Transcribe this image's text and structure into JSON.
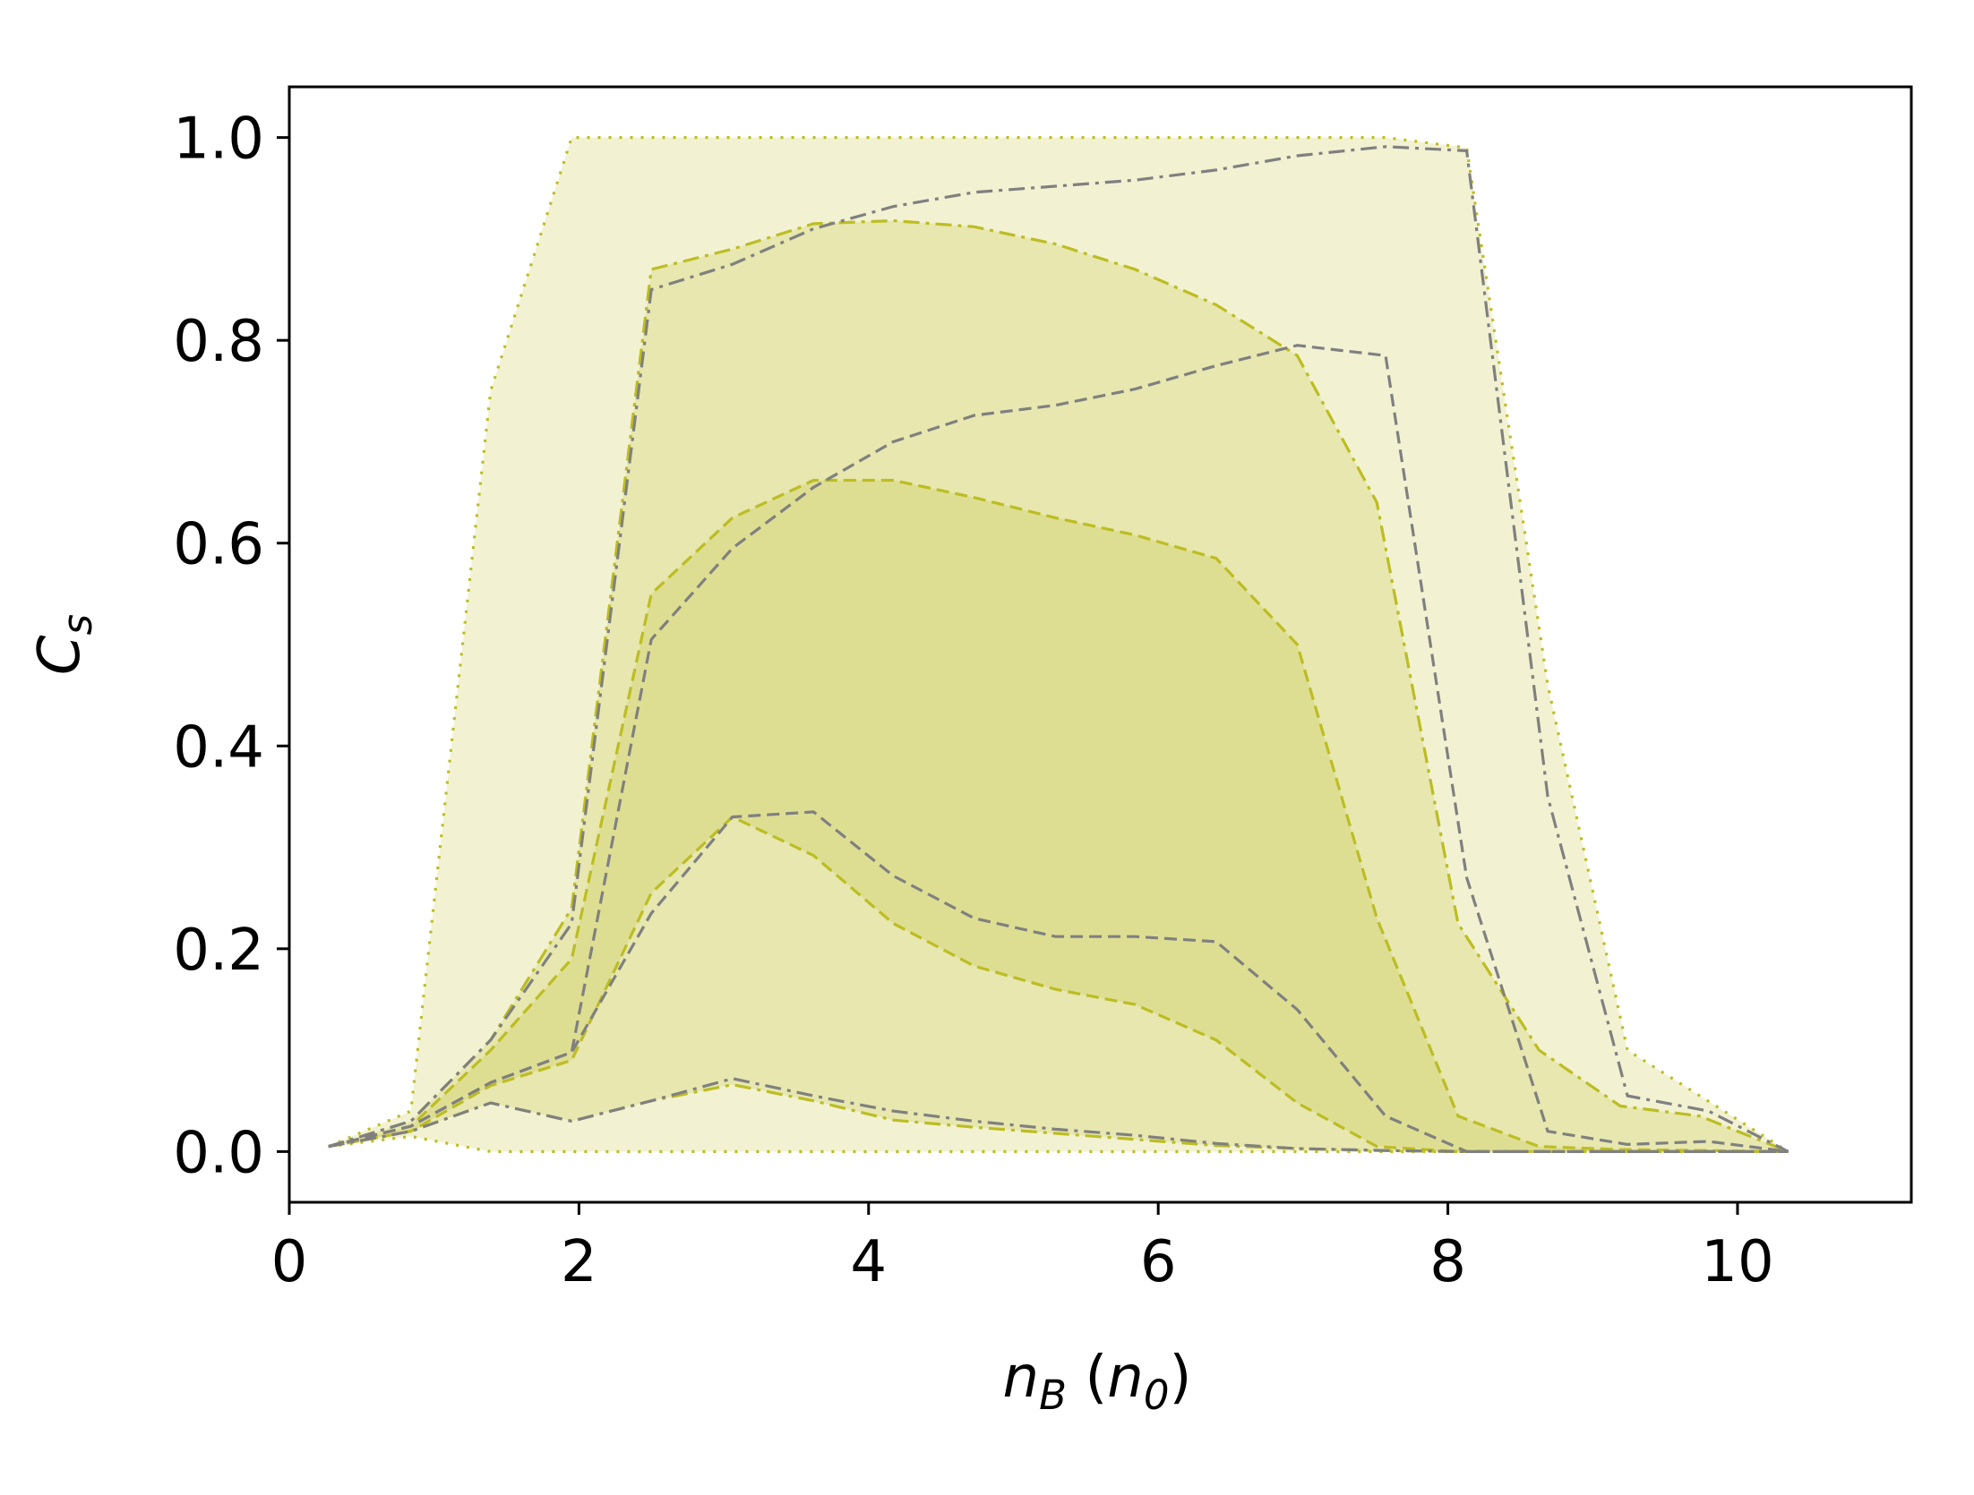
{
  "chart_data": {
    "type": "area",
    "xlabel": {
      "var": "n",
      "sub": "B",
      "unit_var": "n",
      "unit_sub": "0"
    },
    "ylabel": {
      "var": "C",
      "sub": "s"
    },
    "xlim": [
      0,
      11.2
    ],
    "ylim": [
      -0.05,
      1.05
    ],
    "xticks": [
      0,
      2,
      4,
      6,
      8,
      10
    ],
    "yticks": [
      0.0,
      0.2,
      0.4,
      0.6,
      0.8,
      1.0
    ],
    "xtick_labels": [
      "0",
      "2",
      "4",
      "6",
      "8",
      "10"
    ],
    "ytick_labels": [
      "0.0",
      "0.2",
      "0.4",
      "0.6",
      "0.8",
      "1.0"
    ],
    "grid": false,
    "colors": {
      "band_fill": "#bcbd22",
      "band_line": "#bcbd22",
      "median_line": "#808080"
    },
    "bands": [
      {
        "band": "outer",
        "fill_opacity": 0.2,
        "line_style": "dotted",
        "upper": {
          "x": [
            0.27,
            0.84,
            1.39,
            1.95,
            7.57,
            8.13,
            8.69,
            9.24,
            10.35
          ],
          "y": [
            0.005,
            0.04,
            0.75,
            1.0,
            1.0,
            0.99,
            0.46,
            0.1,
            0.0
          ]
        },
        "lower": {
          "x": [
            0.27,
            0.84,
            1.39,
            10.35
          ],
          "y": [
            0.005,
            0.015,
            0.0,
            0.0
          ]
        }
      },
      {
        "band": "middle",
        "fill_opacity": 0.2,
        "line_style": "dashdot",
        "upper": {
          "x": [
            0.27,
            0.84,
            1.39,
            1.95,
            2.5,
            3.06,
            3.62,
            4.17,
            4.73,
            5.29,
            5.84,
            6.4,
            6.96,
            7.51,
            8.07,
            8.63,
            9.19,
            9.74,
            10.35
          ],
          "y": [
            0.005,
            0.03,
            0.11,
            0.24,
            0.87,
            0.89,
            0.915,
            0.918,
            0.912,
            0.895,
            0.87,
            0.835,
            0.785,
            0.64,
            0.225,
            0.1,
            0.045,
            0.035,
            0.0
          ]
        },
        "lower": {
          "x": [
            0.27,
            0.84,
            1.39,
            1.95,
            2.5,
            3.06,
            3.62,
            4.17,
            4.73,
            5.29,
            5.84,
            6.4,
            6.96,
            7.51,
            8.07,
            8.63,
            9.19,
            10.35
          ],
          "y": [
            0.005,
            0.02,
            0.048,
            0.03,
            0.05,
            0.066,
            0.05,
            0.031,
            0.024,
            0.018,
            0.012,
            0.006,
            0.003,
            0.001,
            0.0,
            0.0,
            0.0,
            0.0
          ]
        }
      },
      {
        "band": "inner",
        "fill_opacity": 0.2,
        "line_style": "dashed",
        "upper": {
          "x": [
            0.27,
            0.84,
            1.39,
            1.95,
            2.5,
            3.06,
            3.62,
            4.17,
            4.73,
            5.29,
            5.84,
            6.4,
            6.96,
            7.51,
            8.07,
            8.63,
            9.19,
            10.35
          ],
          "y": [
            0.005,
            0.025,
            0.1,
            0.19,
            0.55,
            0.625,
            0.662,
            0.662,
            0.645,
            0.625,
            0.608,
            0.585,
            0.5,
            0.23,
            0.035,
            0.005,
            0.002,
            0.0
          ]
        },
        "lower": {
          "x": [
            0.27,
            0.84,
            1.39,
            1.95,
            2.5,
            3.06,
            3.62,
            4.17,
            4.73,
            5.29,
            5.84,
            6.4,
            6.96,
            7.51,
            8.07,
            10.35
          ],
          "y": [
            0.005,
            0.02,
            0.065,
            0.09,
            0.255,
            0.33,
            0.292,
            0.225,
            0.183,
            0.16,
            0.145,
            0.11,
            0.048,
            0.005,
            0.0,
            0.0
          ]
        }
      }
    ],
    "medians": [
      {
        "line_style": "dashdot",
        "x": [
          0.27,
          0.84,
          1.39,
          1.95,
          2.5,
          3.06,
          3.62,
          4.17,
          4.73,
          5.29,
          5.84,
          6.4,
          6.96,
          7.57,
          8.13,
          8.69,
          9.24,
          9.8,
          10.35
        ],
        "y": [
          0.005,
          0.03,
          0.11,
          0.225,
          0.85,
          0.875,
          0.91,
          0.932,
          0.946,
          0.952,
          0.958,
          0.968,
          0.982,
          0.991,
          0.987,
          0.35,
          0.055,
          0.04,
          0.0
        ]
      },
      {
        "line_style": "dashed",
        "x": [
          0.27,
          0.84,
          1.39,
          1.95,
          2.5,
          3.06,
          3.62,
          4.17,
          4.73,
          5.29,
          5.84,
          6.4,
          6.96,
          7.57,
          8.13,
          8.69,
          9.24,
          9.8,
          10.35
        ],
        "y": [
          0.005,
          0.025,
          0.068,
          0.098,
          0.505,
          0.595,
          0.655,
          0.7,
          0.726,
          0.736,
          0.752,
          0.775,
          0.795,
          0.785,
          0.27,
          0.02,
          0.007,
          0.01,
          0.0
        ]
      },
      {
        "line_style": "dashed",
        "x": [
          0.27,
          0.84,
          1.39,
          1.95,
          2.5,
          3.06,
          3.62,
          4.17,
          4.73,
          5.29,
          5.84,
          6.4,
          6.96,
          7.57,
          8.13,
          10.35
        ],
        "y": [
          0.005,
          0.025,
          0.068,
          0.098,
          0.235,
          0.33,
          0.335,
          0.272,
          0.23,
          0.212,
          0.212,
          0.207,
          0.14,
          0.035,
          0.0,
          0.0
        ]
      },
      {
        "line_style": "dashdot",
        "x": [
          0.27,
          0.84,
          1.39,
          1.95,
          2.5,
          3.06,
          3.62,
          4.17,
          4.73,
          5.29,
          5.84,
          6.4,
          6.96,
          7.57,
          8.13,
          10.35
        ],
        "y": [
          0.005,
          0.02,
          0.048,
          0.03,
          0.05,
          0.072,
          0.055,
          0.04,
          0.03,
          0.022,
          0.016,
          0.008,
          0.003,
          0.001,
          0.0,
          0.0
        ]
      }
    ]
  }
}
